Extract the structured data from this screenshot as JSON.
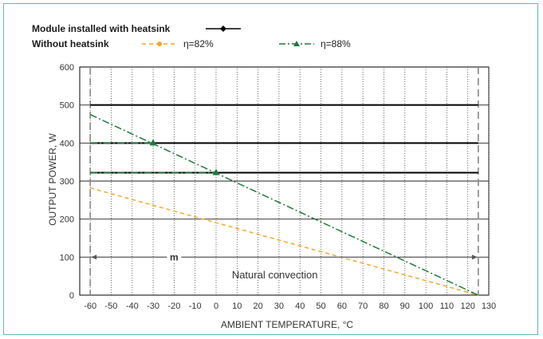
{
  "chart_data": {
    "type": "line",
    "xlabel": "AMBIENT TEMPERATURE, °C",
    "ylabel": "OUTPUT POWER, W",
    "xlim": [
      -65,
      130
    ],
    "ylim": [
      0,
      600
    ],
    "x_ticks": [
      -60,
      -50,
      -40,
      -30,
      -20,
      -10,
      0,
      10,
      20,
      30,
      40,
      50,
      60,
      70,
      80,
      90,
      100,
      110,
      120,
      130
    ],
    "y_ticks": [
      0,
      100,
      200,
      300,
      400,
      500,
      600
    ],
    "grid": true,
    "legend": {
      "row1_label": "Module installed with heatsink",
      "row2_label": "Without heatsink",
      "eta82_label": "η=82%",
      "eta88_label": "η=88%",
      "placement": "top-left"
    },
    "colors": {
      "heatsink": "#000000",
      "eta82": "#f5a623",
      "eta88": "#1e7a3c",
      "frame": "#5bb9c2"
    },
    "series": [
      {
        "name": "Module installed with heatsink",
        "group": "heatsink",
        "x": [
          -60,
          125
        ],
        "y": [
          500,
          500
        ]
      },
      {
        "name": "Module installed with heatsink",
        "group": "heatsink",
        "x": [
          -60,
          125
        ],
        "y": [
          400,
          400
        ]
      },
      {
        "name": "Module installed with heatsink",
        "group": "heatsink",
        "x": [
          -60,
          125
        ],
        "y": [
          322,
          322
        ]
      },
      {
        "name": "η=82%",
        "group": "eta82",
        "x": [
          -60,
          125
        ],
        "y": [
          282,
          0
        ]
      },
      {
        "name": "η=88%",
        "group": "eta88",
        "x": [
          -60,
          125
        ],
        "y": [
          475,
          0
        ]
      },
      {
        "name": "η=88%",
        "group": "eta88",
        "x": [
          -60,
          -30
        ],
        "y": [
          400,
          400
        ],
        "marker_end": true
      },
      {
        "name": "η=88%",
        "group": "eta88",
        "x": [
          -60,
          0
        ],
        "y": [
          322,
          322
        ],
        "marker_end": true
      }
    ],
    "boundaries": [
      -60,
      125
    ],
    "annotations": {
      "range_label": "m",
      "range_y": 100,
      "range_x": [
        -60,
        125
      ],
      "region_label": "Natural convection"
    }
  }
}
